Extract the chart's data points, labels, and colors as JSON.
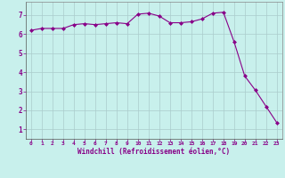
{
  "x": [
    0,
    1,
    2,
    3,
    4,
    5,
    6,
    7,
    8,
    9,
    10,
    11,
    12,
    13,
    14,
    15,
    16,
    17,
    18,
    19,
    20,
    21,
    22,
    23
  ],
  "y": [
    6.2,
    6.3,
    6.3,
    6.3,
    6.5,
    6.55,
    6.5,
    6.55,
    6.6,
    6.55,
    7.05,
    7.1,
    6.95,
    6.6,
    6.6,
    6.65,
    6.8,
    7.1,
    7.15,
    5.6,
    3.8,
    3.05,
    2.2,
    1.35
  ],
  "line_color": "#880088",
  "marker": "D",
  "markersize": 2.0,
  "linewidth": 0.8,
  "bg_color": "#c8f0ec",
  "grid_color": "#aacccc",
  "xlabel": "Windchill (Refroidissement éolien,°C)",
  "tick_color": "#880088",
  "xlim": [
    -0.5,
    23.5
  ],
  "ylim": [
    0.5,
    7.7
  ],
  "yticks": [
    1,
    2,
    3,
    4,
    5,
    6,
    7
  ],
  "xticks": [
    0,
    1,
    2,
    3,
    4,
    5,
    6,
    7,
    8,
    9,
    10,
    11,
    12,
    13,
    14,
    15,
    16,
    17,
    18,
    19,
    20,
    21,
    22,
    23
  ],
  "xtick_labels": [
    "0",
    "1",
    "2",
    "3",
    "4",
    "5",
    "6",
    "7",
    "8",
    "9",
    "10",
    "11",
    "12",
    "13",
    "14",
    "15",
    "16",
    "17",
    "18",
    "19",
    "20",
    "21",
    "22",
    "23"
  ]
}
